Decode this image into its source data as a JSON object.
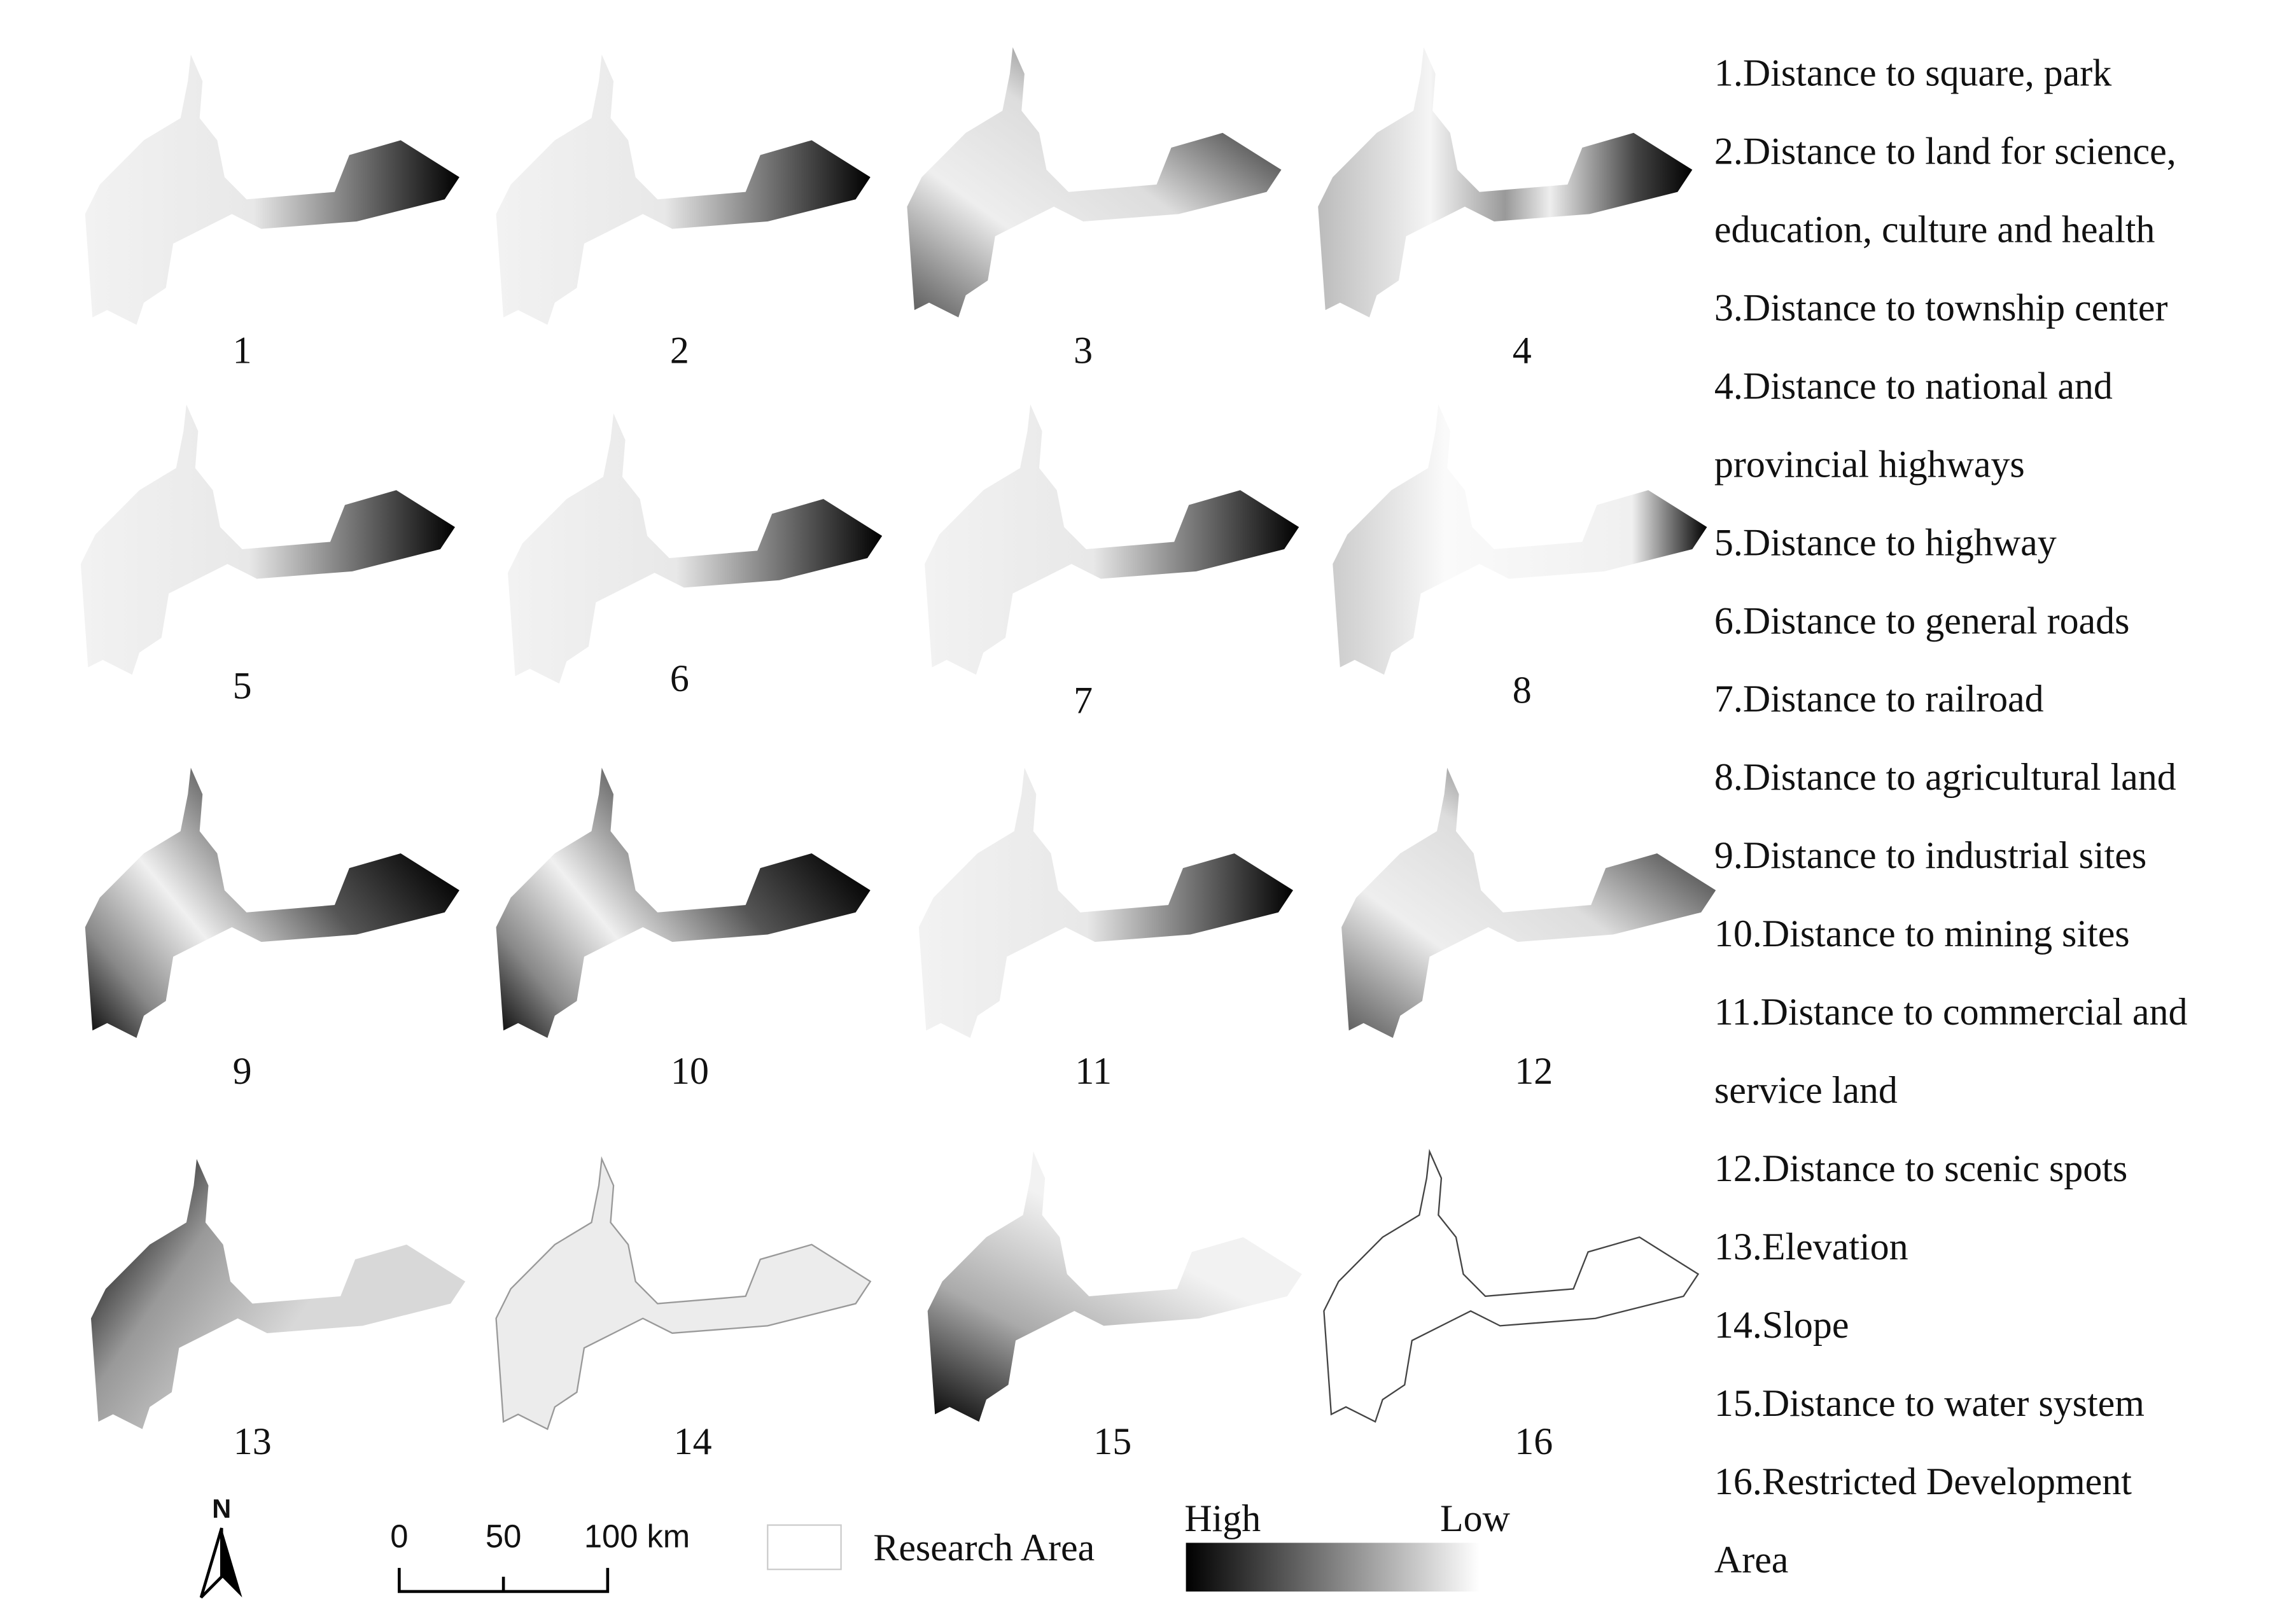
{
  "panels": [
    "1",
    "2",
    "3",
    "4",
    "5",
    "6",
    "7",
    "8",
    "9",
    "10",
    "11",
    "12",
    "13",
    "14",
    "15",
    "16"
  ],
  "legend": {
    "lines": [
      "1.Distance to square, park",
      "2.Distance to land for science,",
      "education, culture and health",
      "3.Distance to township center",
      "4.Distance to national and",
      "provincial highways",
      "5.Distance to highway",
      "6.Distance to general roads",
      "7.Distance to railroad",
      "8.Distance to agricultural land",
      "9.Distance to industrial sites",
      "10.Distance to mining sites",
      "11.Distance to commercial and",
      "service land",
      "12.Distance to scenic spots",
      "13.Elevation",
      "14.Slope",
      "15.Distance to water system",
      "16.Restricted Development",
      "Area"
    ]
  },
  "north": "N",
  "scale_bar": {
    "labels": [
      "0",
      "50",
      "100 km"
    ]
  },
  "research_area": "Research Area",
  "color_ramp": {
    "high": "High",
    "low": "Low"
  }
}
